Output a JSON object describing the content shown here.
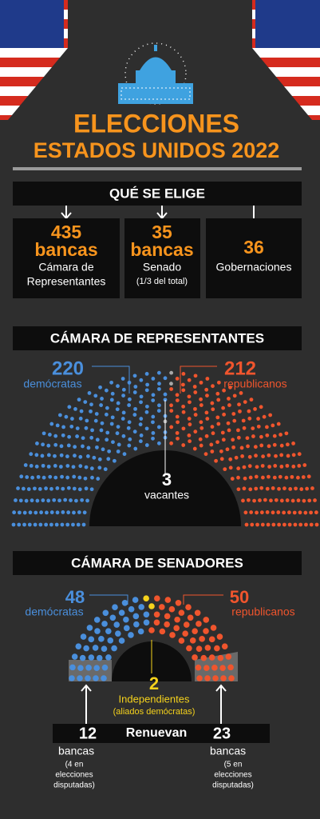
{
  "header": {
    "title_line1": "ELECCIONES",
    "title_line2": "ESTADOS UNIDOS 2022"
  },
  "what": {
    "title": "QUÉ SE ELIGE",
    "items": [
      {
        "number": "435",
        "unit": "bancas",
        "label_lines": [
          "Cámara de",
          "Representantes"
        ]
      },
      {
        "number": "35",
        "unit": "bancas",
        "label_lines": [
          "Senado"
        ],
        "note": "(1/3 del total)"
      },
      {
        "number": "36",
        "label_lines": [
          "Gobernaciones"
        ]
      }
    ]
  },
  "house": {
    "title": "CÁMARA DE REPRESENTANTES",
    "groups": [
      {
        "count": 220,
        "label": "demócratas",
        "color": "#4a8fdc"
      },
      {
        "count": 3,
        "label": "vacantes",
        "color": "#a8a8a8"
      },
      {
        "count": 212,
        "label": "republicanos",
        "color": "#f0552d"
      }
    ]
  },
  "senate": {
    "title": "CÁMARA DE SENADORES",
    "groups": [
      {
        "count": 48,
        "label": "demócratas",
        "color": "#4a8fdc"
      },
      {
        "count": 2,
        "label": "Independientes",
        "note": "(aliados demócratas)",
        "color": "#f5d21c"
      },
      {
        "count": 50,
        "label": "republicanos",
        "color": "#f0552d"
      }
    ],
    "renew": {
      "title": "Renuevan",
      "left": {
        "count": 12,
        "unit": "bancas",
        "note_lines": [
          "(4 en",
          "elecciones",
          "disputadas)"
        ]
      },
      "right": {
        "count": 23,
        "unit": "bancas",
        "note_lines": [
          "(5 en",
          "elecciones",
          "disputadas)"
        ]
      }
    }
  }
}
